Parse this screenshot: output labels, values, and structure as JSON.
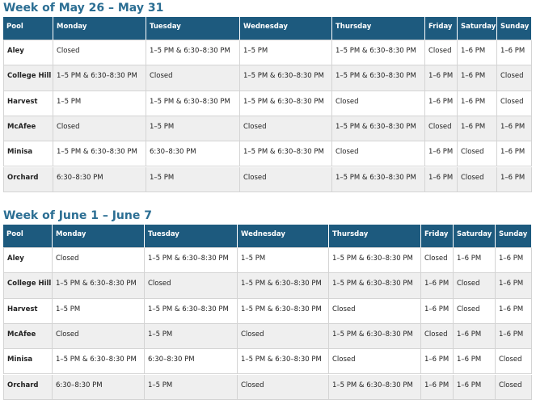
{
  "weeks": [
    {
      "title": "Week of May 26 – May 31",
      "columns": [
        "Pool",
        "Monday",
        "Tuesday",
        "Wednesday",
        "Thursday",
        "Friday",
        "Saturday",
        "Sunday"
      ],
      "rows": [
        [
          "Aley",
          "Closed",
          "1–5 PM & 6:30–8:30 PM",
          "1–5 PM",
          "1–5 PM & 6:30–8:30 PM",
          "Closed",
          "1–6 PM",
          "1–6 PM"
        ],
        [
          "College Hill",
          "1–5 PM & 6:30–8:30 PM",
          "Closed",
          "1–5 PM & 6:30–8:30 PM",
          "1–5 PM & 6:30–8:30 PM",
          "1–6 PM",
          "1–6 PM",
          "Closed"
        ],
        [
          "Harvest",
          "1–5 PM",
          "1–5 PM & 6:30–8:30 PM",
          "1–5 PM & 6:30–8:30 PM",
          "Closed",
          "1–6 PM",
          "1–6 PM",
          "Closed"
        ],
        [
          "McAfee",
          "Closed",
          "1–5 PM",
          "Closed",
          "1–5 PM & 6:30–8:30 PM",
          "Closed",
          "1–6 PM",
          "1–6 PM"
        ],
        [
          "Minisa",
          "1–5 PM & 6:30–8:30 PM",
          "6:30–8:30 PM",
          "1–5 PM & 6:30–8:30 PM",
          "Closed",
          "1–6 PM",
          "Closed",
          "1–6 PM"
        ],
        [
          "Orchard",
          "6:30–8:30 PM",
          "1–5 PM",
          "Closed",
          "1–5 PM & 6:30–8:30 PM",
          "1–6 PM",
          "Closed",
          "1–6 PM"
        ]
      ]
    },
    {
      "title": "Week of June 1 – June 7",
      "columns": [
        "Pool",
        "Monday",
        "Tuesday",
        "Wednesday",
        "Thursday",
        "Friday",
        "Saturday",
        "Sunday"
      ],
      "rows": [
        [
          "Aley",
          "Closed",
          "1–5 PM & 6:30–8:30 PM",
          "1–5 PM",
          "1–5 PM & 6:30–8:30 PM",
          "Closed",
          "1–6 PM",
          "1–6 PM"
        ],
        [
          "College Hill",
          "1–5 PM & 6:30–8:30 PM",
          "Closed",
          "1–5 PM & 6:30–8:30 PM",
          "1–5 PM & 6:30–8:30 PM",
          "1–6 PM",
          "Closed",
          "1–6 PM"
        ],
        [
          "Harvest",
          "1–5 PM",
          "1–5 PM & 6:30–8:30 PM",
          "1–5 PM & 6:30–8:30 PM",
          "Closed",
          "1–6 PM",
          "Closed",
          "1–6 PM"
        ],
        [
          "McAfee",
          "Closed",
          "1–5 PM",
          "Closed",
          "1–5 PM & 6:30–8:30 PM",
          "Closed",
          "1–6 PM",
          "1–6 PM"
        ],
        [
          "Minisa",
          "1–5 PM & 6:30–8:30 PM",
          "6:30–8:30 PM",
          "1–5 PM & 6:30–8:30 PM",
          "Closed",
          "1–6 PM",
          "1–6 PM",
          "Closed"
        ],
        [
          "Orchard",
          "6:30–8:30 PM",
          "1–5 PM",
          "Closed",
          "1–5 PM & 6:30–8:30 PM",
          "1–6 PM",
          "1–6 PM",
          "Closed"
        ]
      ]
    }
  ]
}
